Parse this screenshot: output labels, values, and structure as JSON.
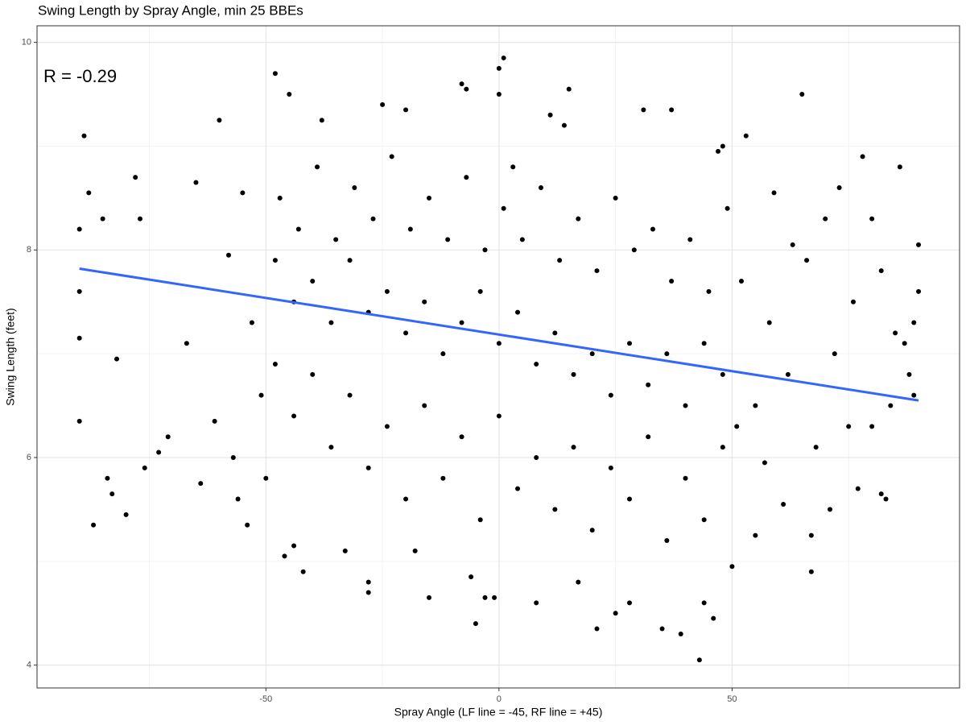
{
  "chart_data": {
    "type": "scatter",
    "title": "Swing Length by Spray Angle, min 25 BBEs",
    "x_label": "Spray Angle (LF line = -45, RF line = +45)",
    "y_label": "Swing Length (feet)",
    "annotation": "R = -0.29",
    "xlim": [
      -99.1,
      98.8
    ],
    "ylim": [
      3.78,
      10.16
    ],
    "xticks": [
      -50,
      0,
      50
    ],
    "yticks": [
      4,
      6,
      8,
      10
    ],
    "x_minor_ticks": [
      -75,
      -25,
      25,
      75
    ],
    "y_minor_ticks": [
      5,
      7,
      9
    ],
    "grid": true,
    "series": [
      {
        "type": "scatter",
        "color": "#000000",
        "x": [
          -89,
          -88,
          -90,
          -90,
          -90,
          -90,
          -87,
          -84,
          -83,
          -80,
          -82,
          -85,
          -78,
          -77,
          -76,
          -73,
          -71,
          -67,
          -65,
          -64,
          -61,
          -60,
          -58,
          -57,
          -56,
          -55,
          -54,
          -53,
          -51,
          -50,
          -48,
          -46,
          -45,
          -44,
          -42,
          -38,
          -33,
          -28,
          -28,
          -25,
          -20,
          -18,
          -15,
          -8,
          -7,
          -6,
          -5,
          -3,
          -1,
          0,
          1,
          0,
          3,
          8,
          11,
          14,
          15,
          17,
          21,
          25,
          28,
          31,
          35,
          37,
          39,
          43,
          44,
          46,
          47,
          48,
          50,
          53,
          55,
          57,
          59,
          61,
          63,
          65,
          67,
          67,
          70,
          71,
          73,
          75,
          77,
          78,
          80,
          82,
          83,
          84,
          86,
          87,
          88,
          89,
          90,
          90,
          89,
          85,
          82,
          80,
          76,
          72,
          68,
          66,
          62,
          58,
          55,
          52,
          51,
          -48,
          -48,
          -47,
          -44,
          -44,
          -43,
          -40,
          -40,
          -39,
          -36,
          -36,
          -35,
          -32,
          -32,
          -31,
          -28,
          -28,
          -27,
          -24,
          -24,
          -23,
          -20,
          -20,
          -19,
          -16,
          -16,
          -15,
          -12,
          -12,
          -11,
          -8,
          -8,
          -7,
          -4,
          -4,
          -3,
          0,
          0,
          1,
          4,
          4,
          5,
          8,
          8,
          9,
          12,
          12,
          13,
          16,
          16,
          17,
          20,
          20,
          21,
          24,
          24,
          25,
          28,
          28,
          29,
          32,
          32,
          33,
          36,
          36,
          37,
          40,
          40,
          41,
          44,
          44,
          45,
          48,
          48,
          49
        ],
        "values": [
          9.1,
          8.55,
          8.2,
          7.6,
          7.15,
          6.35,
          5.35,
          5.8,
          5.65,
          5.45,
          6.95,
          8.3,
          8.7,
          8.3,
          5.9,
          6.05,
          6.2,
          7.1,
          8.65,
          5.75,
          6.35,
          9.25,
          7.95,
          6.0,
          5.6,
          8.55,
          5.35,
          7.3,
          6.6,
          5.8,
          9.7,
          5.05,
          9.5,
          5.15,
          4.9,
          9.25,
          5.1,
          4.7,
          4.8,
          9.4,
          9.35,
          5.1,
          4.65,
          9.6,
          9.55,
          4.85,
          4.4,
          4.65,
          4.65,
          9.75,
          9.85,
          9.5,
          8.8,
          4.6,
          9.3,
          9.2,
          9.55,
          4.8,
          4.35,
          4.5,
          4.6,
          9.35,
          4.35,
          9.35,
          4.3,
          4.05,
          4.6,
          4.45,
          8.95,
          9.0,
          4.95,
          9.1,
          5.25,
          5.95,
          8.55,
          5.55,
          8.05,
          9.5,
          5.25,
          4.9,
          8.3,
          5.5,
          8.6,
          6.3,
          5.7,
          8.9,
          8.3,
          5.65,
          5.6,
          6.5,
          8.8,
          7.1,
          6.8,
          7.3,
          8.05,
          7.6,
          6.6,
          7.2,
          7.8,
          6.3,
          7.5,
          7.0,
          6.1,
          7.9,
          6.8,
          7.3,
          6.5,
          7.7,
          6.3,
          7.9,
          6.9,
          8.5,
          7.5,
          6.4,
          8.2,
          7.7,
          6.8,
          8.8,
          7.3,
          6.1,
          8.1,
          7.9,
          6.6,
          8.6,
          7.4,
          5.9,
          8.3,
          7.6,
          6.3,
          8.9,
          7.2,
          5.6,
          8.2,
          7.5,
          6.5,
          8.5,
          7.0,
          5.8,
          8.1,
          7.3,
          6.2,
          8.7,
          7.6,
          5.4,
          8.0,
          7.1,
          6.4,
          8.4,
          7.4,
          5.7,
          8.1,
          6.9,
          6.0,
          8.6,
          7.2,
          5.5,
          7.9,
          6.8,
          6.1,
          8.3,
          7.0,
          5.3,
          7.8,
          6.6,
          5.9,
          8.5,
          7.1,
          5.6,
          8.0,
          6.7,
          6.2,
          8.2,
          7.0,
          5.2,
          7.7,
          6.5,
          5.8,
          8.1,
          7.1,
          5.4,
          7.6,
          6.8,
          6.1,
          8.4
        ]
      },
      {
        "type": "line",
        "color": "#3366ff",
        "x": [
          -90,
          90
        ],
        "values": [
          7.82,
          6.55
        ]
      }
    ]
  }
}
